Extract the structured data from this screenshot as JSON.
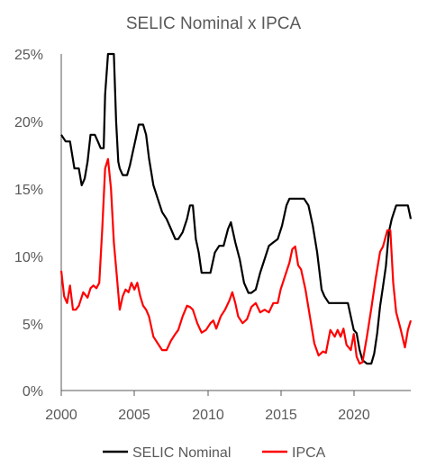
{
  "chart_data": {
    "type": "line",
    "title": "SELIC Nominal x IPCA",
    "xlabel": "",
    "ylabel": "",
    "xlim": [
      2000,
      2023.9
    ],
    "ylim": [
      0,
      25
    ],
    "x_ticks": [
      "2000",
      "2005",
      "2010",
      "2015",
      "2020"
    ],
    "y_ticks": [
      "0%",
      "5%",
      "10%",
      "15%",
      "20%",
      "25%"
    ],
    "grid": false,
    "legend_position": "bottom",
    "series": [
      {
        "name": "SELIC Nominal",
        "color": "#000000",
        "x": [
          2000.0,
          2000.3,
          2000.6,
          2000.9,
          2001.2,
          2001.4,
          2001.6,
          2001.8,
          2002.0,
          2002.3,
          2002.5,
          2002.7,
          2002.9,
          2003.0,
          2003.2,
          2003.3,
          2003.5,
          2003.6,
          2003.75,
          2003.9,
          2004.0,
          2004.2,
          2004.5,
          2004.7,
          2004.9,
          2005.1,
          2005.3,
          2005.6,
          2005.8,
          2006.0,
          2006.3,
          2006.6,
          2006.9,
          2007.2,
          2007.5,
          2007.8,
          2008.0,
          2008.3,
          2008.6,
          2008.8,
          2009.0,
          2009.2,
          2009.4,
          2009.6,
          2009.9,
          2010.2,
          2010.5,
          2010.8,
          2011.1,
          2011.4,
          2011.6,
          2011.9,
          2012.2,
          2012.5,
          2012.8,
          2013.0,
          2013.3,
          2013.6,
          2013.9,
          2014.2,
          2014.5,
          2014.8,
          2015.1,
          2015.4,
          2015.6,
          2015.8,
          2016.2,
          2016.6,
          2016.9,
          2017.2,
          2017.5,
          2017.8,
          2018.0,
          2018.3,
          2018.6,
          2019.0,
          2019.3,
          2019.6,
          2019.8,
          2020.0,
          2020.2,
          2020.4,
          2020.6,
          2020.9,
          2021.2,
          2021.4,
          2021.6,
          2021.8,
          2022.0,
          2022.2,
          2022.4,
          2022.6,
          2022.9,
          2023.2,
          2023.5,
          2023.7,
          2023.9
        ],
        "y": [
          19.0,
          18.5,
          18.5,
          16.5,
          16.5,
          15.25,
          15.75,
          17.0,
          19.0,
          19.0,
          18.5,
          18.0,
          18.0,
          22.0,
          25.0,
          26.5,
          26.5,
          25.0,
          20.0,
          17.0,
          16.5,
          16.0,
          16.0,
          16.75,
          17.75,
          18.75,
          19.75,
          19.75,
          19.0,
          17.25,
          15.25,
          14.25,
          13.25,
          12.75,
          12.0,
          11.25,
          11.25,
          11.75,
          12.75,
          13.75,
          13.75,
          11.25,
          10.25,
          8.75,
          8.75,
          8.75,
          10.25,
          10.75,
          10.75,
          12.0,
          12.5,
          11.0,
          9.75,
          8.0,
          7.25,
          7.25,
          7.5,
          8.75,
          9.75,
          10.75,
          11.0,
          11.25,
          12.25,
          13.75,
          14.25,
          14.25,
          14.25,
          14.25,
          13.75,
          12.25,
          10.25,
          7.5,
          7.0,
          6.5,
          6.5,
          6.5,
          6.5,
          6.5,
          5.5,
          4.5,
          4.25,
          3.0,
          2.25,
          2.0,
          2.0,
          2.75,
          4.25,
          6.25,
          7.75,
          9.25,
          11.75,
          12.75,
          13.75,
          13.75,
          13.75,
          13.75,
          12.75
        ]
      },
      {
        "name": "IPCA",
        "color": "#ff0000",
        "x": [
          2000.0,
          2000.2,
          2000.4,
          2000.6,
          2000.8,
          2001.0,
          2001.2,
          2001.5,
          2001.8,
          2002.0,
          2002.2,
          2002.4,
          2002.6,
          2002.8,
          2003.0,
          2003.2,
          2003.4,
          2003.6,
          2003.8,
          2004.0,
          2004.2,
          2004.4,
          2004.6,
          2004.8,
          2005.0,
          2005.2,
          2005.4,
          2005.6,
          2005.8,
          2006.0,
          2006.3,
          2006.6,
          2006.9,
          2007.2,
          2007.5,
          2007.8,
          2008.0,
          2008.3,
          2008.6,
          2008.8,
          2009.0,
          2009.3,
          2009.6,
          2009.9,
          2010.2,
          2010.4,
          2010.6,
          2010.9,
          2011.2,
          2011.5,
          2011.7,
          2011.9,
          2012.1,
          2012.4,
          2012.7,
          2013.0,
          2013.3,
          2013.6,
          2013.9,
          2014.2,
          2014.5,
          2014.8,
          2015.0,
          2015.3,
          2015.6,
          2015.8,
          2016.0,
          2016.2,
          2016.4,
          2016.7,
          2017.0,
          2017.3,
          2017.6,
          2017.9,
          2018.1,
          2018.4,
          2018.7,
          2018.9,
          2019.1,
          2019.3,
          2019.5,
          2019.8,
          2020.0,
          2020.2,
          2020.4,
          2020.6,
          2020.9,
          2021.2,
          2021.5,
          2021.8,
          2022.0,
          2022.3,
          2022.5,
          2022.7,
          2022.9,
          2023.2,
          2023.5,
          2023.7,
          2023.9
        ],
        "y": [
          8.9,
          7.0,
          6.5,
          7.8,
          6.0,
          6.0,
          6.3,
          7.3,
          6.9,
          7.6,
          7.8,
          7.6,
          8.0,
          12.0,
          16.5,
          17.2,
          15.0,
          11.0,
          8.5,
          6.0,
          7.0,
          7.5,
          7.3,
          8.0,
          7.5,
          8.0,
          7.0,
          6.3,
          6.0,
          5.5,
          4.0,
          3.5,
          3.0,
          3.0,
          3.7,
          4.2,
          4.5,
          5.5,
          6.3,
          6.2,
          6.0,
          5.0,
          4.3,
          4.5,
          5.0,
          5.2,
          4.6,
          5.5,
          6.0,
          6.7,
          7.3,
          6.5,
          5.5,
          5.0,
          5.3,
          6.2,
          6.5,
          5.8,
          6.0,
          5.8,
          6.5,
          6.5,
          7.5,
          8.5,
          9.5,
          10.5,
          10.7,
          9.3,
          9.0,
          7.5,
          5.5,
          3.5,
          2.6,
          2.9,
          2.8,
          4.5,
          4.0,
          4.5,
          4.0,
          4.6,
          3.4,
          3.0,
          4.2,
          2.5,
          2.0,
          2.1,
          4.0,
          6.1,
          8.3,
          10.3,
          10.7,
          11.9,
          11.9,
          8.0,
          5.8,
          4.6,
          3.2,
          4.5,
          5.2
        ]
      }
    ]
  }
}
